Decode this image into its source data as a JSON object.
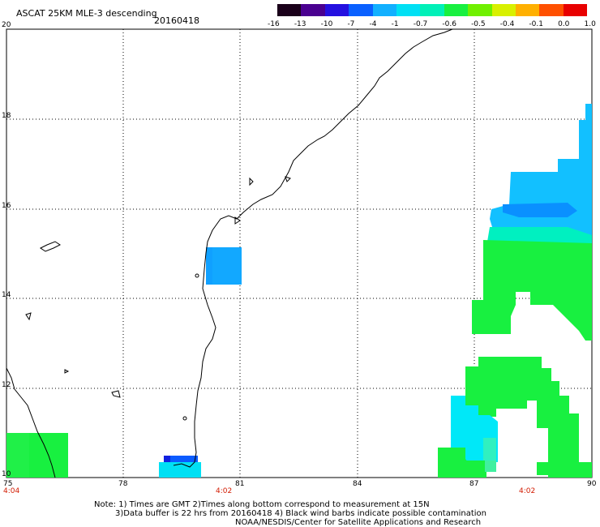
{
  "header": {
    "title": "ASCAT 25KM MLE-3 descending",
    "date": "20160418"
  },
  "colorbar": {
    "segments": [
      {
        "label": "-16",
        "color": "#1a001a"
      },
      {
        "label": "-13",
        "color": "#4a0090"
      },
      {
        "label": "-10",
        "color": "#2410e0"
      },
      {
        "label": "-7",
        "color": "#0a60ff"
      },
      {
        "label": "-4",
        "color": "#12b0ff"
      },
      {
        "label": "-1",
        "color": "#00e0f4"
      },
      {
        "label": "-0.7",
        "color": "#00f0b8"
      },
      {
        "label": "-0.6",
        "color": "#18f040"
      },
      {
        "label": "-0.5",
        "color": "#70f000"
      },
      {
        "label": "-0.4",
        "color": "#d8f000"
      },
      {
        "label": "-0.1",
        "color": "#ffb000"
      },
      {
        "label": "0.0",
        "color": "#ff5000"
      },
      {
        "label": "1.0",
        "color": "#e80000"
      }
    ]
  },
  "axes": {
    "lon_ticks": [
      "75",
      "78",
      "81",
      "84",
      "87",
      "90"
    ],
    "lat_ticks": [
      "20",
      "18",
      "16",
      "14",
      "12",
      "10"
    ],
    "times": [
      "4:04",
      "4:02",
      "4:02"
    ]
  },
  "colors": {
    "cyan": "#00e8f0",
    "blue": "#10b0ff",
    "darkblue": "#0b3bff",
    "green": "#18f040",
    "lightcyan": "#40f8e8"
  },
  "notes": {
    "line1": "Note: 1) Times are GMT 2)Times along bottom correspond to measurement at 15N",
    "line2": "3)Data buffer is 22 hrs from 20160418 4) Black wind barbs indicate possible contamination",
    "line3": "NOAA/NESDIS/Center for Satellite Applications and Research"
  }
}
